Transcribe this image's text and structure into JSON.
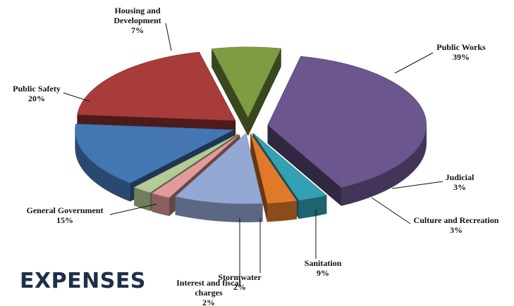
{
  "heading": "EXPENSES",
  "chart_data": {
    "type": "pie",
    "title": "",
    "slices": [
      {
        "label": "Public Works",
        "value": 39,
        "value_label": "39%",
        "color": "#6b568e"
      },
      {
        "label": "Judicial",
        "value": 3,
        "value_label": "3%",
        "color": "#34a0b4"
      },
      {
        "label": "Culture and Recreation",
        "value": 3,
        "value_label": "3%",
        "color": "#e07a2a"
      },
      {
        "label": "Sanitation",
        "value": 9,
        "value_label": "9%",
        "color": "#94a8d4"
      },
      {
        "label": "Stormwater",
        "value": 2,
        "value_label": "2%",
        "color": "#e29a9a"
      },
      {
        "label": "Interest and fiscal charges",
        "value": 2,
        "value_label": "2%",
        "color": "#b3cc96"
      },
      {
        "label": "General Government",
        "value": 15,
        "value_label": "15%",
        "color": "#4476b4"
      },
      {
        "label": "Public Safety",
        "value": 20,
        "value_label": "20%",
        "color": "#a83c3a"
      },
      {
        "label": "Housing and Development",
        "value": 7,
        "value_label": "7%",
        "color": "#7e9c42"
      }
    ],
    "label_lines": [
      [
        "Public Works"
      ],
      [
        "Judicial"
      ],
      [
        "Culture and Recreation"
      ],
      [
        "Sanitation"
      ],
      [
        "Stormwater"
      ],
      [
        "Interest and fiscal",
        "charges"
      ],
      [
        "General Government"
      ],
      [
        "Public Safety"
      ],
      [
        "Housing and",
        "Development"
      ]
    ],
    "exploded": true,
    "three_d": true,
    "legend": "none"
  }
}
